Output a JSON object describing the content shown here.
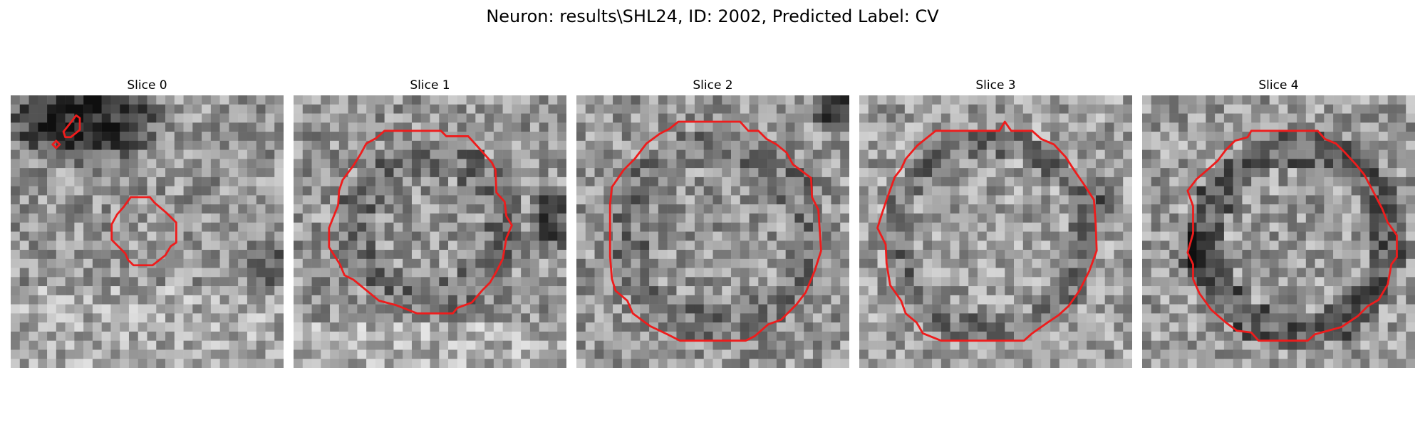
{
  "figure": {
    "title": "Neuron: results\\SHL24, ID: 2002, Predicted Label: CV",
    "contour_color": "#ee1c1c",
    "colormap": "gray",
    "slices": [
      {
        "label": "Slice 0"
      },
      {
        "label": "Slice 1"
      },
      {
        "label": "Slice 2"
      },
      {
        "label": "Slice 3"
      },
      {
        "label": "Slice 4"
      }
    ]
  }
}
